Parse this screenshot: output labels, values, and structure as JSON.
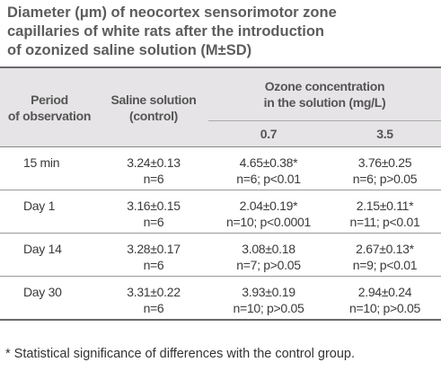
{
  "title": [
    "Diameter (μm) of neocortex sensorimotor zone",
    "capillaries of white rats after the introduction",
    "of ozonized saline solution (M±SD)"
  ],
  "table": {
    "header": {
      "period": [
        "Period",
        "of observation"
      ],
      "saline": [
        "Saline solution",
        "(control)"
      ],
      "ozone": [
        "Ozone concentration",
        "in the solution (mg/L)"
      ],
      "concentrations": [
        "0.7",
        "3.5"
      ]
    },
    "rows": [
      [
        [
          "15 min"
        ],
        [
          "3.24±0.13",
          "n=6"
        ],
        [
          "4.65±0.38*",
          "n=6; p<0.01"
        ],
        [
          "3.76±0.25",
          "n=6; p>0.05"
        ]
      ],
      [
        [
          "Day 1"
        ],
        [
          "3.16±0.15",
          "n=6"
        ],
        [
          "2.04±0.19*",
          "n=10; p<0.0001"
        ],
        [
          "2.15±0.11*",
          "n=11; p<0.01"
        ]
      ],
      [
        [
          "Day 14"
        ],
        [
          "3.28±0.17",
          "n=6"
        ],
        [
          "3.08±0.18",
          "n=7; p>0.05"
        ],
        [
          "2.67±0.13*",
          "n=9; p<0.01"
        ]
      ],
      [
        [
          "Day 30"
        ],
        [
          "3.31±0.22",
          "n=6"
        ],
        [
          "3.93±0.19",
          "n=10; p>0.05"
        ],
        [
          "2.94±0.24",
          "n=10; p>0.05"
        ]
      ]
    ]
  },
  "footnote": "* Statistical significance of differences with the control group."
}
